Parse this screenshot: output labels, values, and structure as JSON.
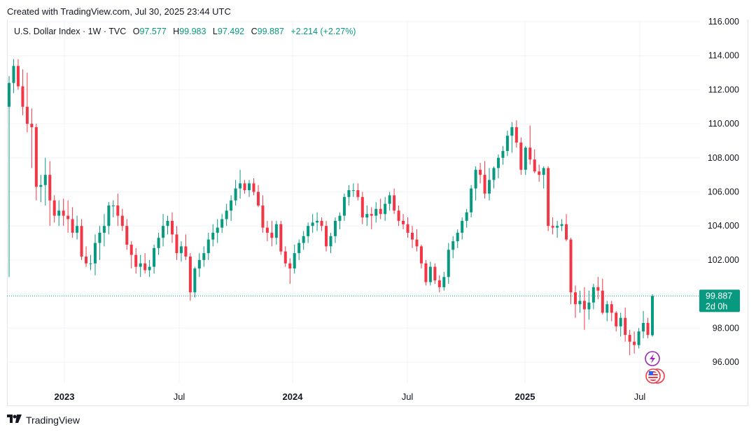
{
  "caption": "Created with TradingView.com, Jul 30, 2025 23:44 UTC",
  "legend": {
    "symbol": "U.S. Dollar Index · 1W · TVC",
    "o_label": "O",
    "o_value": "97.577",
    "h_label": "H",
    "h_value": "99.983",
    "l_label": "L",
    "l_value": "97.492",
    "c_label": "C",
    "c_value": "99.887",
    "change": "+2.214 (+2.27%)"
  },
  "price_tag": {
    "price": "99.887",
    "countdown": "2d 0h"
  },
  "footer": {
    "logo_text": "TradingView"
  },
  "colors": {
    "up": "#089981",
    "down": "#f23645",
    "grid": "#f0f3fa",
    "axis_text": "#131722"
  },
  "icons": [
    "lightning-event-icon",
    "us-flag-event-icon"
  ],
  "chart_data": {
    "type": "candlestick",
    "title": "U.S. Dollar Index · 1W · TVC",
    "ylim": [
      94.5,
      116.5
    ],
    "y_ticks": [
      "96.000",
      "98.000",
      "100.000",
      "102.000",
      "104.000",
      "106.000",
      "108.000",
      "110.000",
      "112.000",
      "114.000",
      "116.000"
    ],
    "x_ticks": [
      "2023",
      "Jul",
      "2024",
      "Jul",
      "2025",
      "Jul"
    ],
    "last_price": 99.887,
    "candles": [
      [
        111.0,
        112.8,
        101.0,
        112.4
      ],
      [
        112.4,
        113.8,
        111.8,
        113.4
      ],
      [
        113.4,
        113.8,
        112.0,
        112.2
      ],
      [
        112.2,
        113.2,
        110.5,
        111.0
      ],
      [
        111.0,
        113.0,
        109.5,
        110.0
      ],
      [
        110.0,
        110.9,
        107.4,
        109.8
      ],
      [
        109.8,
        110.0,
        105.5,
        106.3
      ],
      [
        106.3,
        107.0,
        105.4,
        106.4
      ],
      [
        106.4,
        108.0,
        105.2,
        107.0
      ],
      [
        107.0,
        107.8,
        104.0,
        105.5
      ],
      [
        105.5,
        105.8,
        104.2,
        104.6
      ],
      [
        104.6,
        105.5,
        104.0,
        104.9
      ],
      [
        104.9,
        105.6,
        104.0,
        104.6
      ],
      [
        104.6,
        105.5,
        103.6,
        104.4
      ],
      [
        104.4,
        105.1,
        103.3,
        103.6
      ],
      [
        103.6,
        104.6,
        103.2,
        104.0
      ],
      [
        104.0,
        104.4,
        102.0,
        102.2
      ],
      [
        102.2,
        102.8,
        101.6,
        101.8
      ],
      [
        101.8,
        102.3,
        101.4,
        101.8
      ],
      [
        101.8,
        103.5,
        101.1,
        103.0
      ],
      [
        103.0,
        104.0,
        102.0,
        103.6
      ],
      [
        103.6,
        104.7,
        102.8,
        104.0
      ],
      [
        104.0,
        105.4,
        103.5,
        105.2
      ],
      [
        105.2,
        105.5,
        104.5,
        105.2
      ],
      [
        105.2,
        105.9,
        104.0,
        104.6
      ],
      [
        104.6,
        105.0,
        103.7,
        104.0
      ],
      [
        104.0,
        104.4,
        102.6,
        102.9
      ],
      [
        102.9,
        103.1,
        101.5,
        102.3
      ],
      [
        102.3,
        102.7,
        101.2,
        101.6
      ],
      [
        101.6,
        102.3,
        101.0,
        101.8
      ],
      [
        101.8,
        102.4,
        101.2,
        101.4
      ],
      [
        101.4,
        102.0,
        101.0,
        101.6
      ],
      [
        101.6,
        102.9,
        101.2,
        102.7
      ],
      [
        102.7,
        103.6,
        102.3,
        103.3
      ],
      [
        103.3,
        104.7,
        102.8,
        104.0
      ],
      [
        104.0,
        104.6,
        103.5,
        104.3
      ],
      [
        104.3,
        104.8,
        103.0,
        103.5
      ],
      [
        103.5,
        104.0,
        102.0,
        102.4
      ],
      [
        102.4,
        103.1,
        101.9,
        102.8
      ],
      [
        102.8,
        103.5,
        102.0,
        102.2
      ],
      [
        102.2,
        102.4,
        99.6,
        100.1
      ],
      [
        100.1,
        101.6,
        99.8,
        101.5
      ],
      [
        101.5,
        102.4,
        101.0,
        102.0
      ],
      [
        102.0,
        102.8,
        101.6,
        102.4
      ],
      [
        102.4,
        103.6,
        102.0,
        103.2
      ],
      [
        103.2,
        104.1,
        102.8,
        103.6
      ],
      [
        103.6,
        104.4,
        103.0,
        103.9
      ],
      [
        103.9,
        104.7,
        103.6,
        104.4
      ],
      [
        104.4,
        105.3,
        104.0,
        104.9
      ],
      [
        104.9,
        105.8,
        104.3,
        105.5
      ],
      [
        105.5,
        106.7,
        105.2,
        106.2
      ],
      [
        106.2,
        107.3,
        105.6,
        106.5
      ],
      [
        106.5,
        106.7,
        105.9,
        106.1
      ],
      [
        106.1,
        106.7,
        105.7,
        106.5
      ],
      [
        106.5,
        106.8,
        105.8,
        106.0
      ],
      [
        106.0,
        106.4,
        105.1,
        105.2
      ],
      [
        105.2,
        105.8,
        103.6,
        103.9
      ],
      [
        103.9,
        104.3,
        103.1,
        103.6
      ],
      [
        103.6,
        104.3,
        102.8,
        103.3
      ],
      [
        103.3,
        104.3,
        102.9,
        104.1
      ],
      [
        104.1,
        104.3,
        102.3,
        102.5
      ],
      [
        102.5,
        102.8,
        101.6,
        101.8
      ],
      [
        101.8,
        102.1,
        100.6,
        101.5
      ],
      [
        101.5,
        102.9,
        101.2,
        102.4
      ],
      [
        102.4,
        103.2,
        102.0,
        103.0
      ],
      [
        103.0,
        103.7,
        102.6,
        103.4
      ],
      [
        103.4,
        104.2,
        103.0,
        104.0
      ],
      [
        104.0,
        104.7,
        103.6,
        104.2
      ],
      [
        104.2,
        104.8,
        103.7,
        104.3
      ],
      [
        104.3,
        104.5,
        103.7,
        104.0
      ],
      [
        104.0,
        104.3,
        102.5,
        102.8
      ],
      [
        102.8,
        103.6,
        102.4,
        103.4
      ],
      [
        103.4,
        104.5,
        103.0,
        104.3
      ],
      [
        104.3,
        104.8,
        103.8,
        104.6
      ],
      [
        104.6,
        105.9,
        104.3,
        105.7
      ],
      [
        105.7,
        106.4,
        105.2,
        106.1
      ],
      [
        106.1,
        106.5,
        105.7,
        106.1
      ],
      [
        106.1,
        106.5,
        105.5,
        105.7
      ],
      [
        105.7,
        106.0,
        104.1,
        104.5
      ],
      [
        104.5,
        105.2,
        104.0,
        104.7
      ],
      [
        104.7,
        105.1,
        103.8,
        104.6
      ],
      [
        104.6,
        105.4,
        104.2,
        105.0
      ],
      [
        105.0,
        105.6,
        104.4,
        104.7
      ],
      [
        104.7,
        105.7,
        104.3,
        105.3
      ],
      [
        105.3,
        106.0,
        104.9,
        105.8
      ],
      [
        105.8,
        106.2,
        104.7,
        104.9
      ],
      [
        104.9,
        105.2,
        104.0,
        104.3
      ],
      [
        104.3,
        104.7,
        103.8,
        104.1
      ],
      [
        104.1,
        104.5,
        103.3,
        103.6
      ],
      [
        103.6,
        104.0,
        102.7,
        103.2
      ],
      [
        103.2,
        103.8,
        102.5,
        102.8
      ],
      [
        102.8,
        102.9,
        101.5,
        101.8
      ],
      [
        101.8,
        102.0,
        100.5,
        100.7
      ],
      [
        100.7,
        101.9,
        100.5,
        101.6
      ],
      [
        101.6,
        101.8,
        100.6,
        100.8
      ],
      [
        100.8,
        101.1,
        100.1,
        100.4
      ],
      [
        100.4,
        101.3,
        100.2,
        101.0
      ],
      [
        101.0,
        103.0,
        100.6,
        102.6
      ],
      [
        102.6,
        103.4,
        102.1,
        103.1
      ],
      [
        103.1,
        103.8,
        102.7,
        103.6
      ],
      [
        103.6,
        104.5,
        103.2,
        104.3
      ],
      [
        104.3,
        105.0,
        103.9,
        104.8
      ],
      [
        104.8,
        106.4,
        104.5,
        106.2
      ],
      [
        106.2,
        107.5,
        105.5,
        107.3
      ],
      [
        107.3,
        107.7,
        106.5,
        107.0
      ],
      [
        107.0,
        107.8,
        105.6,
        105.9
      ],
      [
        105.9,
        107.4,
        105.5,
        106.7
      ],
      [
        106.7,
        107.5,
        106.2,
        107.4
      ],
      [
        107.4,
        108.2,
        106.8,
        108.0
      ],
      [
        108.0,
        108.7,
        107.6,
        108.4
      ],
      [
        108.4,
        109.6,
        108.1,
        109.3
      ],
      [
        109.3,
        110.1,
        108.3,
        109.8
      ],
      [
        109.8,
        110.2,
        108.6,
        108.9
      ],
      [
        108.9,
        109.2,
        107.0,
        107.3
      ],
      [
        107.3,
        108.7,
        107.0,
        108.6
      ],
      [
        108.6,
        109.9,
        107.6,
        107.9
      ],
      [
        107.9,
        108.5,
        107.1,
        107.2
      ],
      [
        107.2,
        107.6,
        106.6,
        107.0
      ],
      [
        107.0,
        107.5,
        106.2,
        107.4
      ],
      [
        107.4,
        107.5,
        103.7,
        104.0
      ],
      [
        104.0,
        104.5,
        103.5,
        103.9
      ],
      [
        103.9,
        104.3,
        103.3,
        104.0
      ],
      [
        104.0,
        104.4,
        103.7,
        104.1
      ],
      [
        104.1,
        104.7,
        103.1,
        103.2
      ],
      [
        103.2,
        103.3,
        99.4,
        100.1
      ],
      [
        100.1,
        100.5,
        98.6,
        99.4
      ],
      [
        99.4,
        100.2,
        98.9,
        99.6
      ],
      [
        99.6,
        100.4,
        97.9,
        99.1
      ],
      [
        99.1,
        100.2,
        98.5,
        99.5
      ],
      [
        99.5,
        100.6,
        99.1,
        100.4
      ],
      [
        100.4,
        101.0,
        99.7,
        100.2
      ],
      [
        100.2,
        100.9,
        98.8,
        98.9
      ],
      [
        98.9,
        99.6,
        98.4,
        99.4
      ],
      [
        99.4,
        99.6,
        98.4,
        98.9
      ],
      [
        98.9,
        99.0,
        97.8,
        98.1
      ],
      [
        98.1,
        98.9,
        97.5,
        98.6
      ],
      [
        98.6,
        99.2,
        97.2,
        97.6
      ],
      [
        97.6,
        97.9,
        96.4,
        97.2
      ],
      [
        97.2,
        97.8,
        96.5,
        97.0
      ],
      [
        97.0,
        98.0,
        96.8,
        97.8
      ],
      [
        97.8,
        99.0,
        97.4,
        98.3
      ],
      [
        98.3,
        98.6,
        97.4,
        97.6
      ],
      [
        97.577,
        99.983,
        97.492,
        99.887
      ]
    ]
  }
}
